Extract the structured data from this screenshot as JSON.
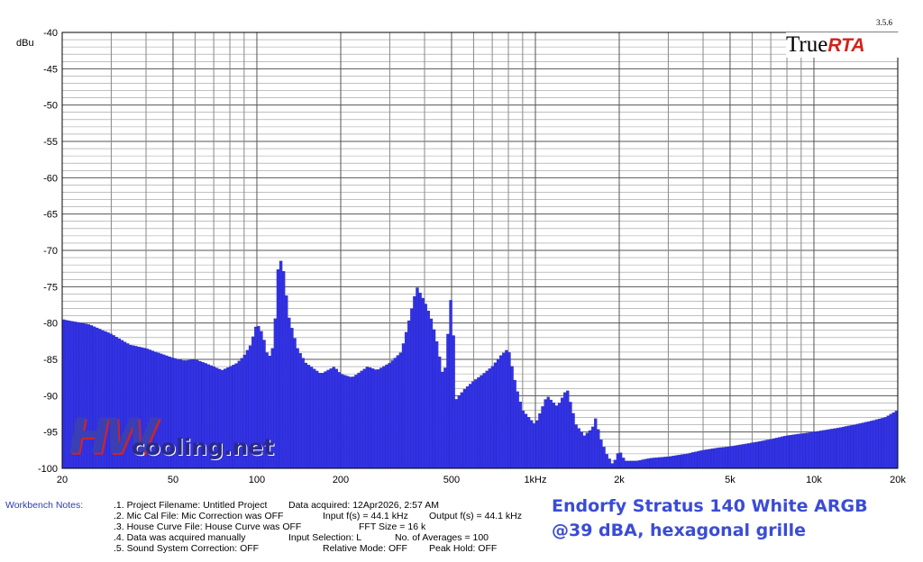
{
  "chart_data": {
    "type": "bar",
    "ylabel": "dBu",
    "ylim": [
      -100,
      -40
    ],
    "xlim": [
      20,
      20000
    ],
    "x_scale": "log",
    "grid": true,
    "version_label": "3.5.6",
    "yticks": [
      -40,
      -45,
      -50,
      -55,
      -60,
      -65,
      -70,
      -75,
      -80,
      -85,
      -90,
      -95,
      -100
    ],
    "xticks": [
      {
        "value": 20,
        "label": "20"
      },
      {
        "value": 50,
        "label": "50"
      },
      {
        "value": 100,
        "label": "100"
      },
      {
        "value": 200,
        "label": "200"
      },
      {
        "value": 500,
        "label": "500"
      },
      {
        "value": 1000,
        "label": "1kHz"
      },
      {
        "value": 2000,
        "label": "2k"
      },
      {
        "value": 5000,
        "label": "5k"
      },
      {
        "value": 10000,
        "label": "10k"
      },
      {
        "value": 20000,
        "label": "20k"
      }
    ],
    "series": [
      {
        "color": "#3232e6",
        "points": [
          [
            20,
            -79.5
          ],
          [
            25,
            -80.2
          ],
          [
            30,
            -81.5
          ],
          [
            35,
            -83.0
          ],
          [
            40,
            -83.5
          ],
          [
            45,
            -84.2
          ],
          [
            50,
            -84.8
          ],
          [
            55,
            -85.2
          ],
          [
            60,
            -85.0
          ],
          [
            65,
            -85.5
          ],
          [
            70,
            -86.0
          ],
          [
            75,
            -86.5
          ],
          [
            80,
            -86.0
          ],
          [
            85,
            -85.5
          ],
          [
            90,
            -84.5
          ],
          [
            95,
            -83.0
          ],
          [
            100,
            -80.0
          ],
          [
            105,
            -81.5
          ],
          [
            110,
            -85.0
          ],
          [
            115,
            -83.0
          ],
          [
            120,
            -70.5
          ],
          [
            125,
            -73.0
          ],
          [
            130,
            -79.0
          ],
          [
            140,
            -83.5
          ],
          [
            150,
            -85.5
          ],
          [
            170,
            -87.0
          ],
          [
            190,
            -86.0
          ],
          [
            200,
            -87.0
          ],
          [
            220,
            -87.5
          ],
          [
            250,
            -86.0
          ],
          [
            270,
            -86.5
          ],
          [
            300,
            -85.5
          ],
          [
            330,
            -84.0
          ],
          [
            350,
            -80.0
          ],
          [
            375,
            -75.0
          ],
          [
            400,
            -77.0
          ],
          [
            420,
            -79.0
          ],
          [
            440,
            -82.0
          ],
          [
            470,
            -88.0
          ],
          [
            500,
            -75.5
          ],
          [
            520,
            -90.5
          ],
          [
            560,
            -89.0
          ],
          [
            600,
            -88.0
          ],
          [
            650,
            -87.0
          ],
          [
            700,
            -86.0
          ],
          [
            750,
            -84.5
          ],
          [
            800,
            -83.5
          ],
          [
            850,
            -88.5
          ],
          [
            900,
            -92.0
          ],
          [
            1000,
            -94.0
          ],
          [
            1100,
            -90.0
          ],
          [
            1200,
            -91.5
          ],
          [
            1300,
            -89.0
          ],
          [
            1400,
            -94.0
          ],
          [
            1500,
            -95.5
          ],
          [
            1600,
            -94.5
          ],
          [
            1650,
            -93.0
          ],
          [
            1700,
            -95.5
          ],
          [
            1800,
            -98.0
          ],
          [
            1900,
            -99.5
          ],
          [
            2000,
            -97.5
          ],
          [
            2100,
            -99.0
          ],
          [
            2300,
            -99.0
          ],
          [
            2600,
            -98.6
          ],
          [
            3000,
            -98.4
          ],
          [
            3500,
            -98.0
          ],
          [
            4000,
            -97.5
          ],
          [
            4500,
            -97.2
          ],
          [
            5000,
            -97.0
          ],
          [
            6000,
            -96.5
          ],
          [
            7000,
            -96.0
          ],
          [
            8000,
            -95.5
          ],
          [
            10000,
            -95.0
          ],
          [
            12000,
            -94.5
          ],
          [
            14000,
            -94.0
          ],
          [
            16000,
            -93.5
          ],
          [
            18000,
            -93.0
          ],
          [
            20000,
            -92.0
          ]
        ]
      }
    ]
  },
  "brand": {
    "part1": "True",
    "part2": "RTA"
  },
  "watermark": {
    "mark": "HW",
    "word": "cooling.net"
  },
  "notes": {
    "label": "Workbench Notes:",
    "rows": [
      {
        "left": ".1. Project Filename: Untitled Project",
        "mid": "Data acquired: 12Apr2026, 2:57 AM",
        "right": ""
      },
      {
        "left": ".2. Mic Cal File: Mic Correction was OFF",
        "mid": "Input f(s) = 44.1 kHz",
        "right": "Output f(s) = 44.1 kHz"
      },
      {
        "left": ".3. House Curve File: House Curve was OFF",
        "mid": "FFT Size = 16 k",
        "right": ""
      },
      {
        "left": ".4. Data was acquired manually",
        "mid": "Input Selection: L",
        "right": "No. of Averages = 100"
      },
      {
        "left": ".5. Sound System Correction: OFF",
        "mid": "Relative Mode:  OFF",
        "right": "Peak Hold: OFF"
      }
    ]
  },
  "headline": {
    "line1": "Endorfy Stratus 140 White ARGB",
    "line2": "@39 dBA, hexagonal grille"
  }
}
